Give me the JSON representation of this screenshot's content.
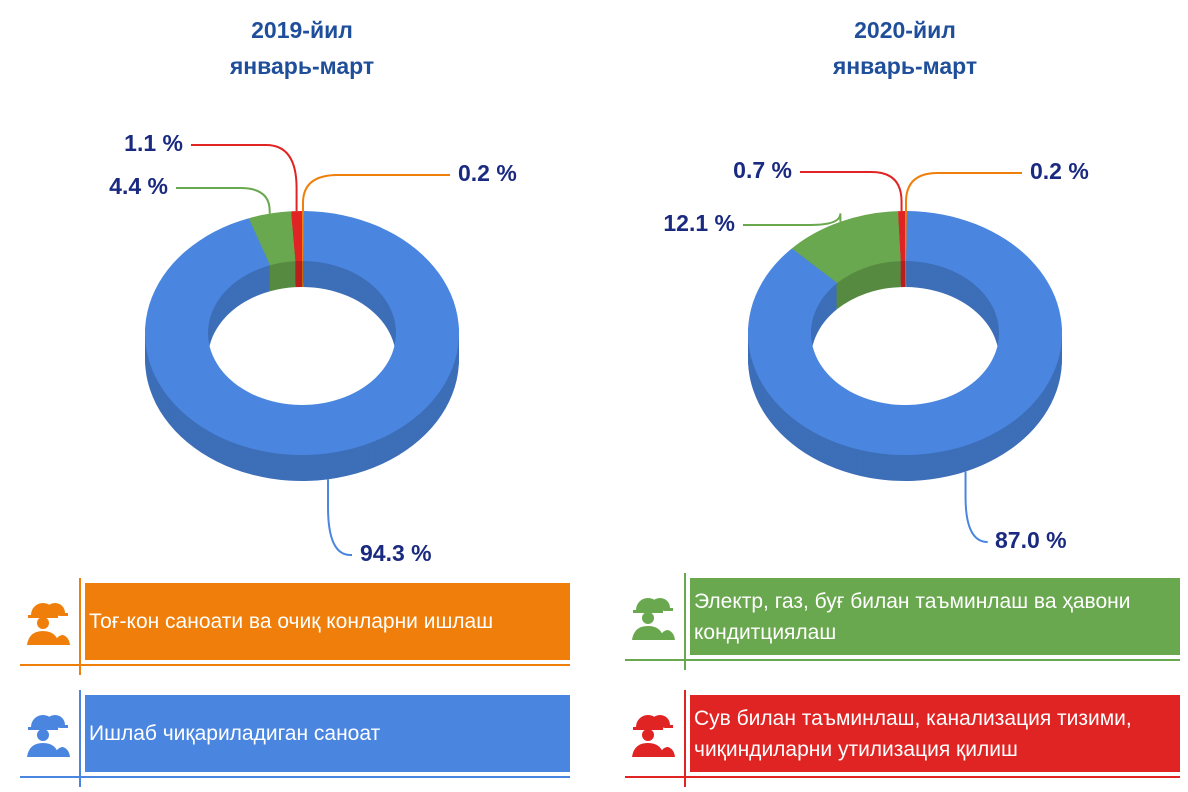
{
  "chart_data": [
    {
      "type": "donut",
      "title": "2019-йил",
      "subtitle": "январь-март",
      "values": [
        0.2,
        94.3,
        4.4,
        1.1
      ],
      "value_labels": [
        "0.2 %",
        "94.3 %",
        "4.4 %",
        "1.1 %"
      ]
    },
    {
      "type": "donut",
      "title": "2020-йил",
      "subtitle": "январь-март",
      "values": [
        0.2,
        87.0,
        12.1,
        0.7
      ],
      "value_labels": [
        "0.2 %",
        "87.0 %",
        "12.1 %",
        "0.7 %"
      ]
    }
  ],
  "legend": {
    "items": [
      {
        "name": "Тоғ-кон саноати ва очиқ конларни ишлаш",
        "color": "#ef7f0a"
      },
      {
        "name": "Ишлаб чиқариладиган саноат",
        "color": "#4a86e0"
      },
      {
        "name": "Электр, газ, буғ билан таъминлаш ва ҳавони кондитциялаш",
        "color": "#6aa84f"
      },
      {
        "name": "Сув билан таъминлаш, канализация тизими, чиқиндиларни утилизация қилиш",
        "color": "#e02424"
      }
    ]
  }
}
